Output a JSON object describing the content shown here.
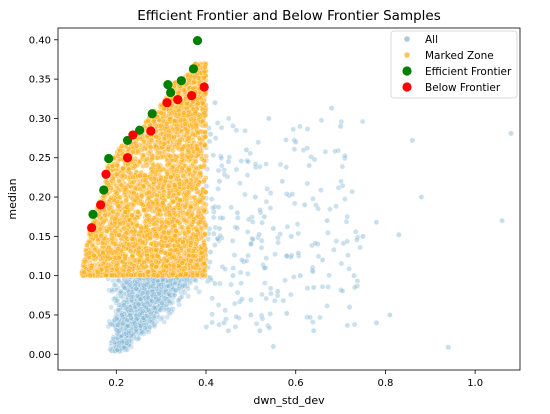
{
  "chart_data": {
    "type": "scatter",
    "title": "Efficient Frontier and Below Frontier Samples",
    "xlabel": "dwn_std_dev",
    "ylabel": "median",
    "xlim": [
      0.07,
      1.1
    ],
    "ylim": [
      -0.02,
      0.415
    ],
    "xticks": [
      0.2,
      0.4,
      0.6,
      0.8,
      1.0
    ],
    "xtick_labels": [
      "0.2",
      "0.4",
      "0.6",
      "0.8",
      "1.0"
    ],
    "yticks": [
      0.0,
      0.05,
      0.1,
      0.15,
      0.2,
      0.25,
      0.3,
      0.35,
      0.4
    ],
    "ytick_labels": [
      "0.00",
      "0.05",
      "0.10",
      "0.15",
      "0.20",
      "0.25",
      "0.30",
      "0.35",
      "0.40"
    ],
    "grid": false,
    "legend_position": "top-right",
    "legend": [
      {
        "name": "All",
        "color": "#7fb5d5",
        "marker": "small-circle"
      },
      {
        "name": "Marked Zone",
        "color": "#ffae1a",
        "marker": "small-circle"
      },
      {
        "name": "Efficient Frontier",
        "color": "#008000",
        "marker": "circle"
      },
      {
        "name": "Below Frontier",
        "color": "#ff0000",
        "marker": "circle"
      }
    ],
    "series": [
      {
        "name": "Efficient Frontier",
        "color": "#008000",
        "points": [
          [
            0.148,
            0.178
          ],
          [
            0.172,
            0.209
          ],
          [
            0.183,
            0.249
          ],
          [
            0.225,
            0.272
          ],
          [
            0.252,
            0.285
          ],
          [
            0.28,
            0.306
          ],
          [
            0.315,
            0.343
          ],
          [
            0.321,
            0.333
          ],
          [
            0.345,
            0.348
          ],
          [
            0.372,
            0.363
          ],
          [
            0.381,
            0.399
          ]
        ]
      },
      {
        "name": "Below Frontier",
        "color": "#ff0000",
        "points": [
          [
            0.145,
            0.161
          ],
          [
            0.165,
            0.19
          ],
          [
            0.177,
            0.229
          ],
          [
            0.225,
            0.25
          ],
          [
            0.237,
            0.279
          ],
          [
            0.277,
            0.284
          ],
          [
            0.313,
            0.32
          ],
          [
            0.337,
            0.324
          ],
          [
            0.368,
            0.329
          ],
          [
            0.396,
            0.34
          ]
        ]
      },
      {
        "name": "All",
        "color": "#7fb5d5",
        "outliers": [
          [
            1.08,
            0.281
          ],
          [
            1.06,
            0.17
          ],
          [
            0.94,
            0.009
          ],
          [
            0.88,
            0.2
          ],
          [
            0.86,
            0.272
          ],
          [
            0.83,
            0.152
          ],
          [
            0.81,
            0.05
          ],
          [
            0.78,
            0.168
          ],
          [
            0.75,
            0.15
          ],
          [
            0.72,
            0.06
          ],
          [
            0.7,
            0.29
          ],
          [
            0.68,
            0.313
          ],
          [
            0.66,
            0.12
          ],
          [
            0.64,
            0.03
          ],
          [
            0.63,
            0.24
          ],
          [
            0.62,
            0.19
          ],
          [
            0.61,
            0.1
          ],
          [
            0.6,
            0.27
          ],
          [
            0.59,
            0.15
          ],
          [
            0.58,
            0.052
          ],
          [
            0.57,
            0.22
          ],
          [
            0.56,
            0.08
          ],
          [
            0.55,
            0.16
          ],
          [
            0.54,
            0.3
          ],
          [
            0.53,
            0.11
          ],
          [
            0.52,
            0.03
          ],
          [
            0.51,
            0.2
          ],
          [
            0.5,
            0.14
          ],
          [
            0.49,
            0.26
          ],
          [
            0.48,
            0.07
          ],
          [
            0.47,
            0.18
          ],
          [
            0.46,
            0.1
          ],
          [
            0.45,
            0.245
          ],
          [
            0.44,
            0.04
          ],
          [
            0.43,
            0.16
          ],
          [
            0.43,
            0.22
          ],
          [
            0.42,
            0.32
          ],
          [
            0.42,
            0.09
          ],
          [
            0.41,
            0.28
          ],
          [
            0.41,
            0.13
          ],
          [
            0.45,
            0.03
          ],
          [
            0.5,
            0.05
          ],
          [
            0.55,
            0.01
          ],
          [
            0.48,
            0.12
          ],
          [
            0.53,
            0.175
          ],
          [
            0.58,
            0.125
          ],
          [
            0.64,
            0.085
          ],
          [
            0.67,
            0.17
          ],
          [
            0.73,
            0.1
          ],
          [
            0.78,
            0.04
          ]
        ]
      },
      {
        "name": "Marked Zone",
        "color": "#ffae1a",
        "region": {
          "x": [
            0.12,
            0.4
          ],
          "y": [
            0.1,
            0.37
          ]
        }
      }
    ]
  }
}
